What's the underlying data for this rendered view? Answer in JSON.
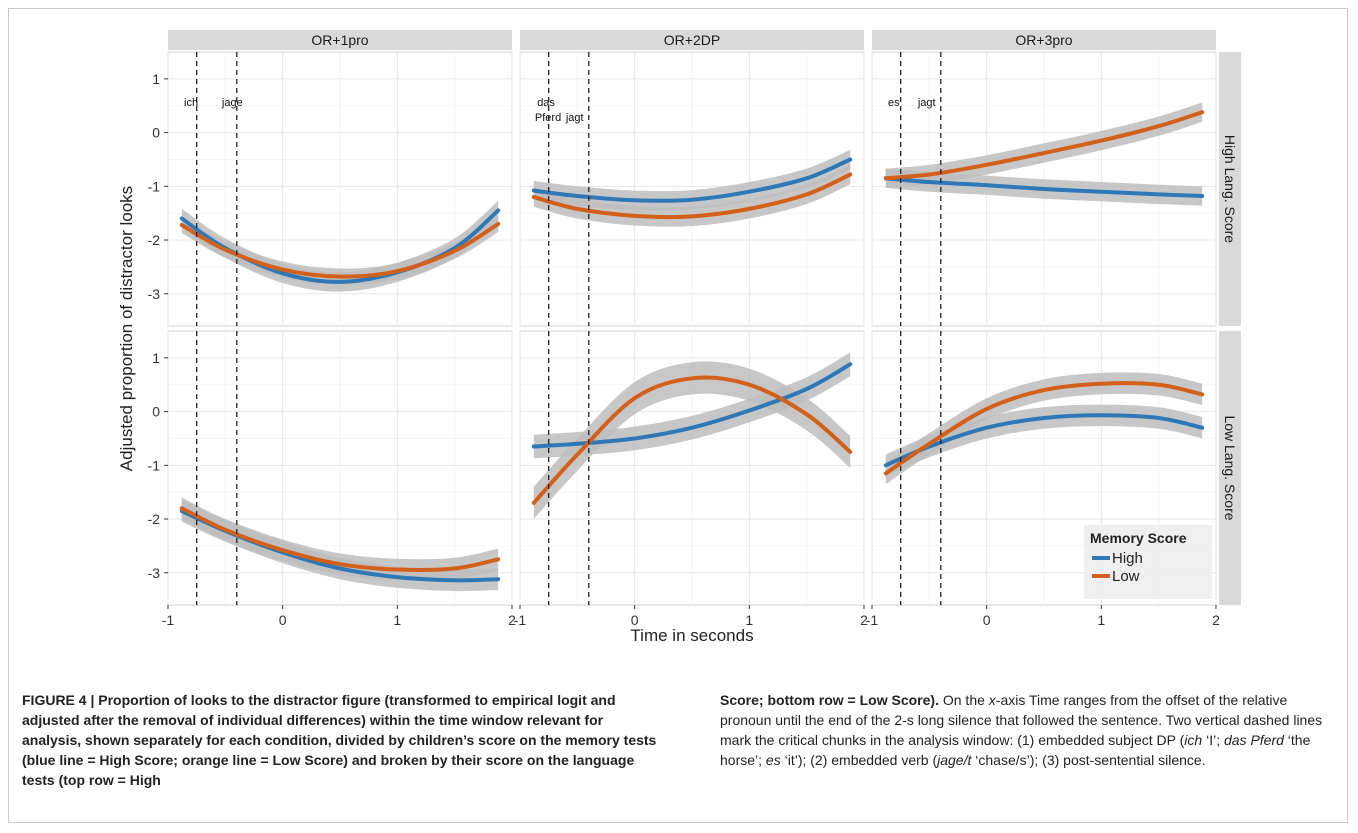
{
  "chart_data": {
    "type": "line",
    "x_label": "Time in seconds",
    "y_label": "Adjusted proportion of distractor looks",
    "columns": [
      "OR+1pro",
      "OR+2DP",
      "OR+3pro"
    ],
    "rows": [
      "High Lang. Score",
      "Low Lang. Score"
    ],
    "x_ticks": [
      "-1",
      "0",
      "1",
      "2"
    ],
    "y_ticks": [
      "1",
      "0",
      "-1",
      "-2",
      "-3"
    ],
    "xlim": [
      -1,
      2
    ],
    "ylim": [
      -3.6,
      1.5
    ],
    "grid": true,
    "legend": {
      "title": "Memory Score",
      "placement": "bottom-right",
      "entries": [
        "High",
        "Low"
      ]
    },
    "colors": {
      "High": "#2E78B7",
      "Low": "#D2601A",
      "ribbon": "#BDBDBD"
    },
    "vlines": [
      -0.75,
      -0.4
    ],
    "chunk_labels": [
      {
        "col": 0,
        "lines": [
          {
            "text": "ich",
            "x": -0.86
          },
          {
            "text": "jage",
            "x": -0.53
          }
        ]
      },
      {
        "col": 1,
        "lines": [
          {
            "text": "das",
            "x": -0.85
          },
          {
            "text": "Pferd",
            "x": -0.87,
            "dy": 1
          },
          {
            "text": "jagt",
            "x": -0.6,
            "dy": 1
          }
        ]
      },
      {
        "col": 2,
        "lines": [
          {
            "text": "es",
            "x": -0.86
          },
          {
            "text": "jagt",
            "x": -0.6
          }
        ]
      }
    ],
    "panels": [
      {
        "row": 0,
        "col": 0,
        "series": [
          {
            "name": "High",
            "x": [
              -0.88,
              -0.5,
              0,
              0.5,
              1,
              1.5,
              1.88
            ],
            "y": [
              -1.6,
              -2.15,
              -2.62,
              -2.78,
              -2.6,
              -2.15,
              -1.45
            ],
            "band": 0.18
          },
          {
            "name": "Low",
            "x": [
              -0.88,
              -0.5,
              0,
              0.5,
              1,
              1.5,
              1.88
            ],
            "y": [
              -1.72,
              -2.18,
              -2.55,
              -2.68,
              -2.58,
              -2.2,
              -1.7
            ],
            "band": 0.15
          }
        ]
      },
      {
        "row": 0,
        "col": 1,
        "series": [
          {
            "name": "High",
            "x": [
              -0.88,
              -0.5,
              0,
              0.5,
              1,
              1.5,
              1.88
            ],
            "y": [
              -1.08,
              -1.18,
              -1.26,
              -1.25,
              -1.1,
              -0.85,
              -0.5
            ],
            "band": 0.18
          },
          {
            "name": "Low",
            "x": [
              -0.88,
              -0.5,
              0,
              0.5,
              1,
              1.5,
              1.88
            ],
            "y": [
              -1.2,
              -1.42,
              -1.55,
              -1.56,
              -1.42,
              -1.15,
              -0.78
            ],
            "band": 0.18
          }
        ]
      },
      {
        "row": 0,
        "col": 2,
        "series": [
          {
            "name": "High",
            "x": [
              -0.88,
              -0.5,
              0,
              0.5,
              1,
              1.5,
              1.88
            ],
            "y": [
              -0.85,
              -0.92,
              -0.98,
              -1.05,
              -1.1,
              -1.15,
              -1.18
            ],
            "band": 0.18
          },
          {
            "name": "Low",
            "x": [
              -0.88,
              -0.5,
              0,
              0.5,
              1,
              1.5,
              1.88
            ],
            "y": [
              -0.85,
              -0.78,
              -0.6,
              -0.38,
              -0.15,
              0.12,
              0.38
            ],
            "band": 0.18
          }
        ]
      },
      {
        "row": 1,
        "col": 0,
        "series": [
          {
            "name": "High",
            "x": [
              -0.88,
              -0.5,
              0,
              0.5,
              1,
              1.5,
              1.88
            ],
            "y": [
              -1.85,
              -2.22,
              -2.62,
              -2.92,
              -3.08,
              -3.14,
              -3.12
            ],
            "band": 0.2
          },
          {
            "name": "Low",
            "x": [
              -0.88,
              -0.5,
              0,
              0.5,
              1,
              1.5,
              1.88
            ],
            "y": [
              -1.8,
              -2.2,
              -2.58,
              -2.84,
              -2.94,
              -2.92,
              -2.75
            ],
            "band": 0.2
          }
        ]
      },
      {
        "row": 1,
        "col": 1,
        "series": [
          {
            "name": "High",
            "x": [
              -0.88,
              -0.5,
              0,
              0.5,
              1,
              1.5,
              1.88
            ],
            "y": [
              -0.65,
              -0.6,
              -0.5,
              -0.3,
              0.02,
              0.42,
              0.88
            ],
            "band": 0.22
          },
          {
            "name": "Low",
            "x": [
              -0.88,
              -0.5,
              0,
              0.5,
              1,
              1.5,
              1.88
            ],
            "y": [
              -1.7,
              -0.8,
              0.25,
              0.62,
              0.5,
              -0.05,
              -0.75
            ],
            "band": 0.3
          }
        ]
      },
      {
        "row": 1,
        "col": 2,
        "series": [
          {
            "name": "High",
            "x": [
              -0.88,
              -0.5,
              0,
              0.5,
              1,
              1.5,
              1.88
            ],
            "y": [
              -1.0,
              -0.65,
              -0.3,
              -0.12,
              -0.07,
              -0.12,
              -0.3
            ],
            "band": 0.2
          },
          {
            "name": "Low",
            "x": [
              -0.88,
              -0.5,
              0,
              0.5,
              1,
              1.5,
              1.88
            ],
            "y": [
              -1.15,
              -0.6,
              0.05,
              0.4,
              0.52,
              0.5,
              0.32
            ],
            "band": 0.2
          }
        ]
      }
    ]
  },
  "caption": {
    "left_bold": "FIGURE 4 | Proportion of looks to the distractor figure (transformed to empirical logit and adjusted after the removal of individual differences) within the time window relevant for analysis, shown separately for each condition, divided by children’s score on the memory tests (blue line = High Score; orange line = Low Score) and broken by their score on the language tests (top row = High",
    "right_bold": "Score; bottom row = Low Score).",
    "right_p1": " On the ",
    "right_x": "x",
    "right_p2": "-axis Time ranges from the offset of the relative pronoun until the end of the 2-s long silence that followed the sentence. Two vertical dashed lines mark the critical chunks in the analysis window: (1) embedded subject DP (",
    "right_ich": "ich",
    "right_p3": " ‘I’; ",
    "right_das": "das Pferd",
    "right_p4": " ‘the horse’; ",
    "right_es": "es",
    "right_p5": " ‘it’); (2) embedded verb (",
    "right_jage": "jage/t",
    "right_p6": " ‘chase/s’); (3) post-sentential silence."
  }
}
